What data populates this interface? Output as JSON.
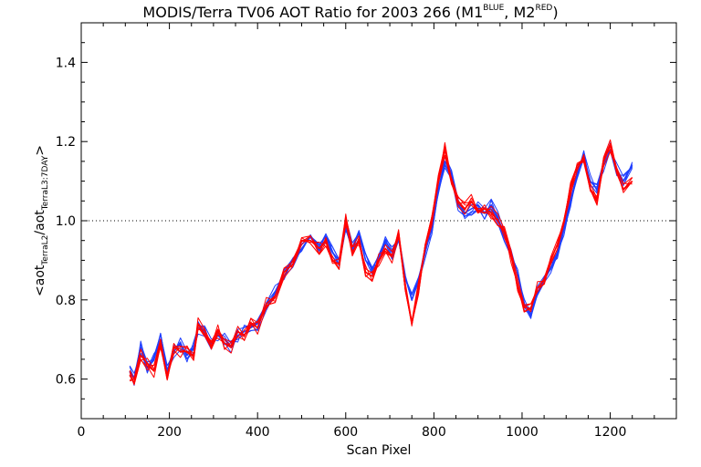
{
  "chart_data": {
    "type": "line",
    "title": {
      "main": "MODIS/Terra TV06 AOT Ratio for 2003 266 (M1",
      "m1_sup": "BLUE",
      "sep": ", M2",
      "m2_sup": "RED",
      "close": ")"
    },
    "xlabel": "Scan Pixel",
    "ylabel": {
      "open": "<aot",
      "sub1": "TerraL2",
      "mid": "/aot",
      "sub2": "TerraL3:7DAY",
      "close": ">"
    },
    "xlim": [
      0,
      1350
    ],
    "ylim": [
      0.5,
      1.5
    ],
    "xticks": [
      0,
      200,
      400,
      600,
      800,
      1000,
      1200
    ],
    "yticks": [
      0.6,
      0.8,
      1.0,
      1.2,
      1.4
    ],
    "x_tick_labels": [
      "0",
      "200",
      "400",
      "600",
      "800",
      "1000",
      "1200"
    ],
    "y_tick_labels": [
      "0.6",
      "0.8",
      "1.0",
      "1.2",
      "1.4"
    ],
    "reference_line": {
      "y": 1.0,
      "style": "dotted"
    },
    "grid": false,
    "series_colors": {
      "M1": "#1f3fff",
      "M2": "#ff0000"
    },
    "series": [
      {
        "band": "M1",
        "color": "#1f3fff",
        "x": [
          110,
          120,
          135,
          150,
          165,
          180,
          195,
          210,
          225,
          240,
          255,
          265,
          280,
          295,
          310,
          325,
          340,
          355,
          370,
          385,
          400,
          420,
          440,
          460,
          480,
          500,
          520,
          540,
          555,
          570,
          585,
          600,
          615,
          630,
          645,
          660,
          675,
          690,
          705,
          720,
          735,
          750,
          765,
          780,
          795,
          810,
          825,
          840,
          855,
          870,
          885,
          900,
          915,
          930,
          945,
          960,
          975,
          990,
          1005,
          1020,
          1035,
          1050,
          1065,
          1080,
          1095,
          1110,
          1125,
          1140,
          1155,
          1170,
          1185,
          1200,
          1215,
          1230,
          1250
        ],
        "values": [
          0.62,
          0.6,
          0.68,
          0.63,
          0.65,
          0.7,
          0.62,
          0.67,
          0.69,
          0.66,
          0.68,
          0.73,
          0.72,
          0.69,
          0.71,
          0.7,
          0.68,
          0.71,
          0.72,
          0.73,
          0.74,
          0.78,
          0.82,
          0.86,
          0.9,
          0.94,
          0.96,
          0.94,
          0.96,
          0.92,
          0.9,
          0.99,
          0.93,
          0.97,
          0.9,
          0.88,
          0.91,
          0.95,
          0.92,
          0.96,
          0.86,
          0.8,
          0.85,
          0.92,
          0.98,
          1.08,
          1.15,
          1.12,
          1.04,
          1.02,
          1.03,
          1.04,
          1.02,
          1.04,
          1.01,
          0.96,
          0.92,
          0.86,
          0.79,
          0.76,
          0.82,
          0.85,
          0.88,
          0.92,
          0.98,
          1.05,
          1.12,
          1.16,
          1.1,
          1.08,
          1.14,
          1.18,
          1.13,
          1.1,
          1.14
        ]
      },
      {
        "band": "M2",
        "color": "#ff0000",
        "x": [
          110,
          120,
          135,
          150,
          165,
          180,
          195,
          210,
          225,
          240,
          255,
          265,
          280,
          295,
          310,
          325,
          340,
          355,
          370,
          385,
          400,
          420,
          440,
          460,
          480,
          500,
          520,
          540,
          555,
          570,
          585,
          600,
          615,
          630,
          645,
          660,
          675,
          690,
          705,
          720,
          735,
          750,
          765,
          780,
          795,
          810,
          825,
          840,
          855,
          870,
          885,
          900,
          915,
          930,
          945,
          960,
          975,
          990,
          1005,
          1020,
          1035,
          1050,
          1065,
          1080,
          1095,
          1110,
          1125,
          1140,
          1155,
          1170,
          1185,
          1200,
          1215,
          1230,
          1250
        ],
        "values": [
          0.61,
          0.59,
          0.66,
          0.64,
          0.62,
          0.69,
          0.6,
          0.68,
          0.67,
          0.67,
          0.66,
          0.74,
          0.71,
          0.68,
          0.72,
          0.69,
          0.68,
          0.72,
          0.71,
          0.74,
          0.73,
          0.79,
          0.81,
          0.87,
          0.89,
          0.95,
          0.95,
          0.93,
          0.95,
          0.9,
          0.89,
          1.0,
          0.92,
          0.95,
          0.87,
          0.86,
          0.9,
          0.93,
          0.91,
          0.97,
          0.84,
          0.74,
          0.83,
          0.93,
          1.0,
          1.1,
          1.18,
          1.1,
          1.05,
          1.03,
          1.05,
          1.02,
          1.03,
          1.02,
          1.0,
          0.97,
          0.91,
          0.84,
          0.77,
          0.78,
          0.83,
          0.84,
          0.9,
          0.94,
          1.0,
          1.08,
          1.14,
          1.15,
          1.08,
          1.05,
          1.15,
          1.19,
          1.12,
          1.08,
          1.1
        ]
      }
    ]
  }
}
